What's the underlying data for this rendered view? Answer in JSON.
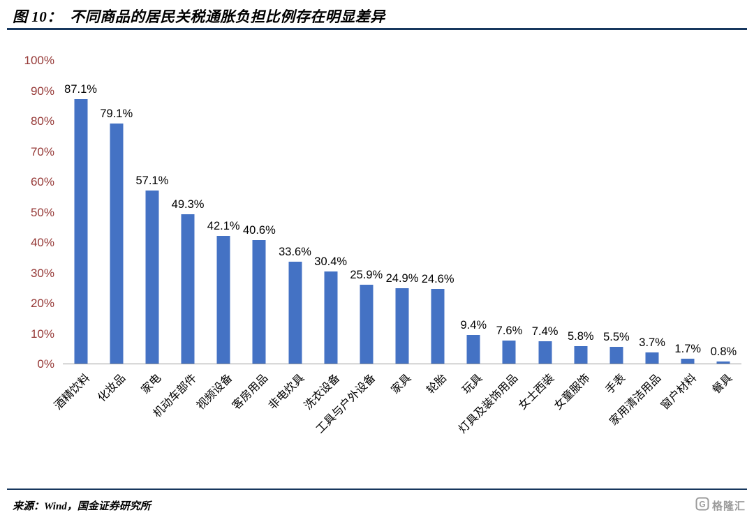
{
  "header": {
    "title": "图 10：  不同商品的居民关税通胀负担比例存在明显差异"
  },
  "chart_data": {
    "type": "bar",
    "title": "不同商品的居民关税通胀负担比例存在明显差异",
    "categories": [
      "酒精饮料",
      "化妆品",
      "家电",
      "机动车部件",
      "视频设备",
      "客房用品",
      "非电炊具",
      "洗衣设备",
      "工具与户外设备",
      "家具",
      "轮胎",
      "玩具",
      "灯具及装饰用品",
      "女士西装",
      "女童服饰",
      "手表",
      "家用清洁用品",
      "窗户材料",
      "餐具"
    ],
    "values": [
      87.1,
      79.1,
      57.1,
      49.3,
      42.1,
      40.6,
      33.6,
      30.4,
      25.9,
      24.9,
      24.6,
      9.4,
      7.6,
      7.4,
      5.8,
      5.5,
      3.7,
      1.7,
      0.8
    ],
    "data_labels": [
      "87.1%",
      "79.1%",
      "57.1%",
      "49.3%",
      "42.1%",
      "40.6%",
      "33.6%",
      "30.4%",
      "25.9%",
      "24.9%",
      "24.6%",
      "9.4%",
      "7.6%",
      "7.4%",
      "5.8%",
      "5.5%",
      "3.7%",
      "1.7%",
      "0.8%"
    ],
    "xlabel": "",
    "ylabel": "",
    "ylim": [
      0,
      100
    ],
    "yticks": [
      "100%",
      "90%",
      "80%",
      "70%",
      "60%",
      "50%",
      "40%",
      "30%",
      "20%",
      "10%",
      "0%"
    ],
    "grid": false,
    "legend_position": "none",
    "bar_color": "#4472C4",
    "ytick_color": "#953735"
  },
  "footer": {
    "source": "来源：Wind，国金证券研究所",
    "logo_text": "格隆汇"
  },
  "colors": {
    "bar": "#4472C4",
    "title_rule": "#17375E",
    "ytick": "#953735",
    "logo_gray": "#9b9b9b"
  }
}
